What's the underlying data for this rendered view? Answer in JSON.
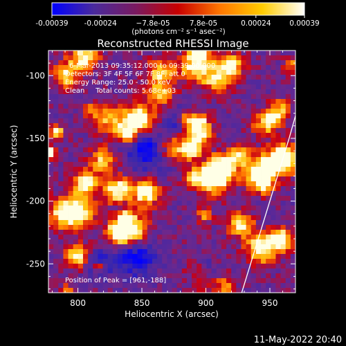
{
  "colorbar": {
    "ticks": [
      "-0.00039",
      "-0.00024",
      "−7.8e-05",
      "7.8e-05",
      "0.00024",
      "0.00039"
    ],
    "tick_values": [
      -0.00039,
      -0.00024,
      -7.8e-05,
      7.8e-05,
      0.00024,
      0.00039
    ],
    "units_label": "(photons cm⁻² s⁻¹ asec⁻²)",
    "colors": [
      "#0000ff",
      "#4a2a9c",
      "#7a1a60",
      "#c80000",
      "#ff7700",
      "#ffcc00",
      "#ffffff"
    ]
  },
  "annotations": {
    "time_range": "6-Mar-2013 09:35:12.000 to 09:39:00.000",
    "detectors": "Detectors: 3F 4F 5F 6F 7F 8F, att 0",
    "energy": "Energy Range: 25.0 - 50.0 keV",
    "method": "Clean     Total counts: 5.68e+03",
    "peak": "Position of Peak = [961,-188]"
  },
  "footer": {
    "date": "11-May-2022 20:40"
  },
  "chart_data": {
    "type": "heatmap",
    "title": "Reconstructed RHESSI Image",
    "xlabel": "Heliocentric X (arcsec)",
    "ylabel": "Heliocentric Y (arcsec)",
    "xlim": [
      777,
      970
    ],
    "ylim": [
      -273,
      -80
    ],
    "xticks": [
      800,
      850,
      900,
      950
    ],
    "yticks": [
      -100,
      -150,
      -200,
      -250
    ],
    "peak": [
      961,
      -188
    ],
    "limb_line": [
      [
        928,
        -273
      ],
      [
        965,
        -150
      ],
      [
        970,
        -132
      ]
    ]
  }
}
